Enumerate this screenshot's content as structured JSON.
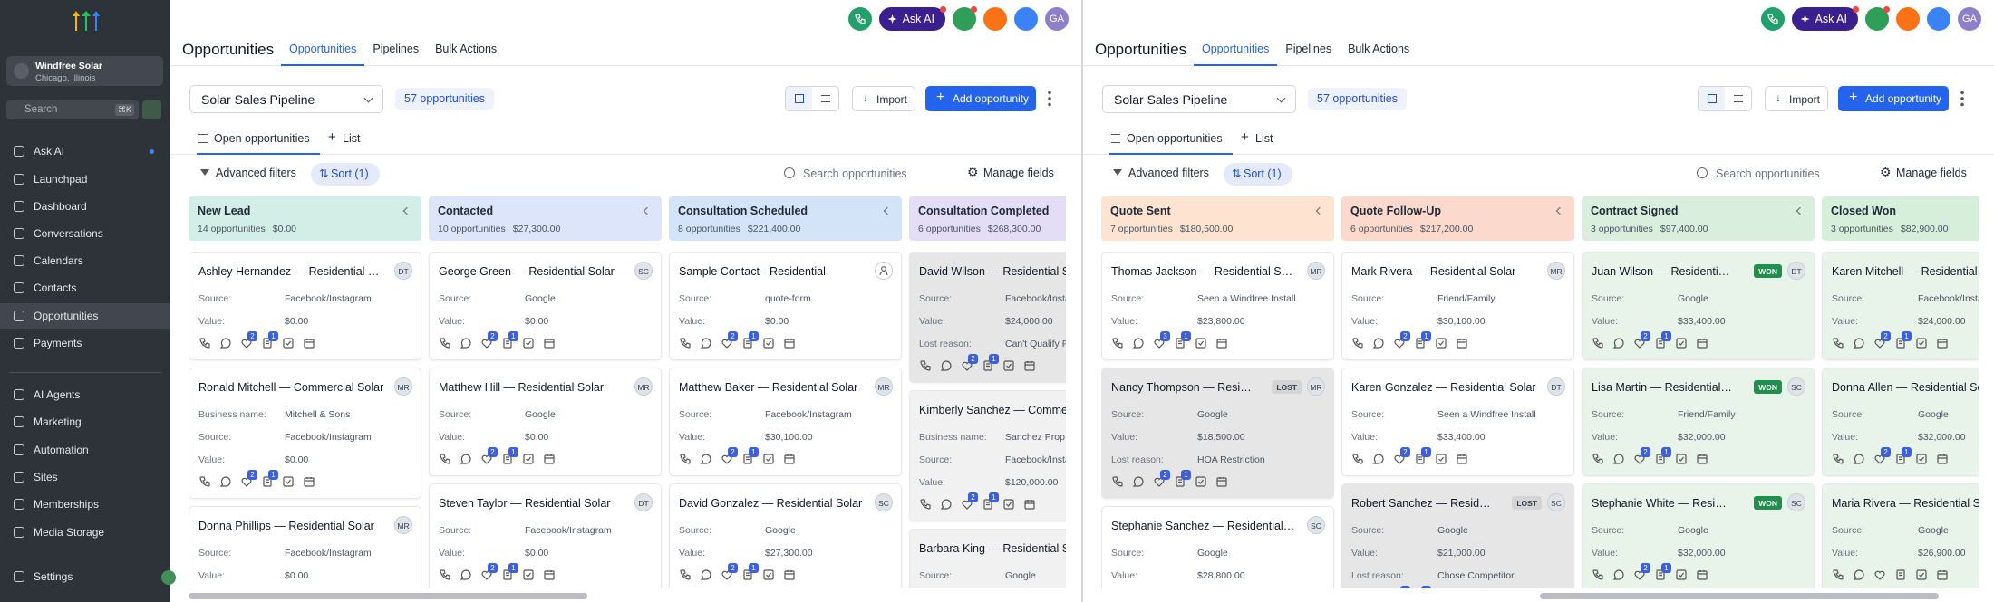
{
  "sidebar": {
    "account": {
      "name": "Windfree Solar",
      "location": "Chicago, Illinois"
    },
    "search": "Search",
    "shortcut": "⌘K",
    "nav": [
      "Ask AI",
      "Launchpad",
      "Dashboard",
      "Conversations",
      "Calendars",
      "Contacts",
      "Opportunities",
      "Payments"
    ],
    "nav2": [
      "AI Agents",
      "Marketing",
      "Automation",
      "Sites",
      "Memberships",
      "Media Storage"
    ],
    "settings": "Settings"
  },
  "panes": [
    {
      "header": {
        "ask_ai": "Ask AI",
        "avatar": "GA",
        "title": "Opportunities",
        "tabs": [
          "Opportunities",
          "Pipelines",
          "Bulk Actions"
        ]
      },
      "toolbar": {
        "pipeline": "Solar Sales Pipeline",
        "count": "57 opportunities",
        "import": "Import",
        "add": "Add opportunity"
      },
      "views": [
        "Open opportunities",
        "List"
      ],
      "filters": {
        "advanced": "Advanced filters",
        "sort": "Sort (1)",
        "search": "Search opportunities",
        "manage": "Manage fields"
      },
      "columns": [
        {
          "name": "New Lead",
          "count": "14 opportunities",
          "total": "$0.00",
          "color": "#d3eee6",
          "cards": [
            {
              "title": "Ashley Hernandez — Residential Solar",
              "initials": "DT",
              "color": "#ffffff",
              "fields": [
                [
                  "Source:",
                  "Facebook/Instagram"
                ],
                [
                  "Value:",
                  "$0.00"
                ]
              ],
              "icon_counts": [
                2,
                1
              ]
            },
            {
              "title": "Ronald Mitchell — Commercial Solar",
              "initials": "MR",
              "color": "#ffffff",
              "fields": [
                [
                  "Business name:",
                  "Mitchell & Sons"
                ],
                [
                  "Source:",
                  "Facebook/Instagram"
                ],
                [
                  "Value:",
                  "$0.00"
                ]
              ],
              "icon_counts": [
                2,
                1
              ]
            },
            {
              "title": "Donna Phillips — Residential Solar",
              "initials": "MR",
              "color": "#ffffff",
              "fields": [
                [
                  "Source:",
                  "Facebook/Instagram"
                ],
                [
                  "Value:",
                  "$0.00"
                ]
              ],
              "icon_counts": []
            }
          ]
        },
        {
          "name": "Contacted",
          "count": "10 opportunities",
          "total": "$27,300.00",
          "color": "#dde5fb",
          "cards": [
            {
              "title": "George Green — Residential Solar",
              "initials": "SC",
              "color": "#ffffff",
              "fields": [
                [
                  "Source:",
                  "Google"
                ],
                [
                  "Value:",
                  "$0.00"
                ]
              ],
              "icon_counts": [
                2,
                1
              ]
            },
            {
              "title": "Matthew Hill — Residential Solar",
              "initials": "MR",
              "color": "#ffffff",
              "fields": [
                [
                  "Source:",
                  "Google"
                ],
                [
                  "Value:",
                  "$0.00"
                ]
              ],
              "icon_counts": [
                2,
                1
              ]
            },
            {
              "title": "Steven Taylor — Residential Solar",
              "initials": "DT",
              "color": "#ffffff",
              "fields": [
                [
                  "Source:",
                  "Facebook/Instagram"
                ],
                [
                  "Value:",
                  "$0.00"
                ]
              ],
              "icon_counts": [
                2,
                1
              ]
            }
          ]
        },
        {
          "name": "Consultation Scheduled",
          "count": "8 opportunities",
          "total": "$221,400.00",
          "color": "#d3e3f8",
          "cards": [
            {
              "title": "Sample Contact - Residential",
              "color": "#ffffff",
              "fields": [
                [
                  "Source:",
                  "quote-form"
                ],
                [
                  "Value:",
                  "$0.00"
                ]
              ],
              "icon_counts": [
                2,
                1
              ]
            },
            {
              "title": "Matthew Baker — Residential Solar",
              "initials": "MR",
              "color": "#ffffff",
              "fields": [
                [
                  "Source:",
                  "Facebook/Instagram"
                ],
                [
                  "Value:",
                  "$30,100.00"
                ]
              ],
              "icon_counts": [
                2,
                1
              ]
            },
            {
              "title": "David Gonzalez — Residential Solar",
              "initials": "SC",
              "color": "#ffffff",
              "fields": [
                [
                  "Source:",
                  "Google"
                ],
                [
                  "Value:",
                  "$27,300.00"
                ]
              ],
              "icon_counts": [
                2,
                1
              ]
            }
          ]
        },
        {
          "name": "Consultation Completed",
          "count": "6 opportunities",
          "total": "$268,300.00",
          "color": "#e3ddf6",
          "cards": [
            {
              "title": "David Wilson — Residential Solar",
              "color": "#e6e6e6",
              "fields": [
                [
                  "Source:",
                  "Facebook/Instagram"
                ],
                [
                  "Value:",
                  "$24,000.00"
                ],
                [
                  "Lost reason:",
                  "Can't Qualify F"
                ]
              ],
              "icon_counts": [
                2,
                1
              ]
            },
            {
              "title": "Kimberly Sanchez — Commercial Solar",
              "color": "#f1f1f1",
              "fields": [
                [
                  "Business name:",
                  "Sanchez Prop"
                ],
                [
                  "Source:",
                  "Facebook/Instagram"
                ],
                [
                  "Value:",
                  "$120,000.00"
                ]
              ],
              "icon_counts": [
                2,
                1
              ]
            },
            {
              "title": "Barbara King — Residential Solar",
              "color": "#f1f1f1",
              "fields": [
                [
                  "Source:",
                  "Google"
                ]
              ],
              "icon_counts": []
            }
          ]
        }
      ]
    },
    {
      "header": {
        "ask_ai": "Ask AI",
        "avatar": "GA",
        "title": "Opportunities",
        "tabs": [
          "Opportunities",
          "Pipelines",
          "Bulk Actions"
        ]
      },
      "toolbar": {
        "pipeline": "Solar Sales Pipeline",
        "count": "57 opportunities",
        "import": "Import",
        "add": "Add opportunity"
      },
      "views": [
        "Open opportunities",
        "List"
      ],
      "filters": {
        "advanced": "Advanced filters",
        "sort": "Sort (1)",
        "search": "Search opportunities",
        "manage": "Manage fields"
      },
      "columns": [
        {
          "name": "Quote Sent",
          "count": "7 opportunities",
          "total": "$180,500.00",
          "color": "#fde3d0",
          "cards": [
            {
              "title": "Thomas Jackson — Residential Solar",
              "initials": "MR",
              "color": "#ffffff",
              "fields": [
                [
                  "Source:",
                  "Seen a Windfree Install"
                ],
                [
                  "Value:",
                  "$23,800.00"
                ]
              ],
              "icon_counts": [
                3,
                1
              ]
            },
            {
              "title": "Nancy Thompson — Residential Solar",
              "badge": "LOST",
              "badge_color": "#d4d4d4",
              "initials": "MR",
              "color": "#e6e6e6",
              "fields": [
                [
                  "Source:",
                  "Google"
                ],
                [
                  "Value:",
                  "$18,500.00"
                ],
                [
                  "Lost reason:",
                  "HOA Restriction"
                ]
              ],
              "icon_counts": [
                2,
                1
              ]
            },
            {
              "title": "Stephanie Sanchez — Residential Solar",
              "initials": "SC",
              "color": "#ffffff",
              "fields": [
                [
                  "Source:",
                  "Google"
                ],
                [
                  "Value:",
                  "$28,800.00"
                ]
              ],
              "icon_counts": []
            }
          ]
        },
        {
          "name": "Quote Follow-Up",
          "count": "6 opportunities",
          "total": "$217,200.00",
          "color": "#fbdacd",
          "cards": [
            {
              "title": "Mark Rivera — Residential Solar",
              "initials": "MR",
              "color": "#ffffff",
              "fields": [
                [
                  "Source:",
                  "Friend/Family"
                ],
                [
                  "Value:",
                  "$30,100.00"
                ]
              ],
              "icon_counts": [
                2,
                1
              ]
            },
            {
              "title": "Karen Gonzalez — Residential Solar",
              "initials": "DT",
              "color": "#ffffff",
              "fields": [
                [
                  "Source:",
                  "Seen a Windfree Install"
                ],
                [
                  "Value:",
                  "$33,400.00"
                ]
              ],
              "icon_counts": [
                2,
                1
              ]
            },
            {
              "title": "Robert Sanchez — Residential Solar",
              "badge": "LOST",
              "badge_color": "#d4d4d4",
              "initials": "SC",
              "color": "#e6e6e6",
              "fields": [
                [
                  "Source:",
                  "Google"
                ],
                [
                  "Value:",
                  "$21,000.00"
                ],
                [
                  "Lost reason:",
                  "Chose Competitor"
                ]
              ],
              "icon_counts": [
                2,
                1
              ]
            }
          ]
        },
        {
          "name": "Contract Signed",
          "count": "3 opportunities",
          "total": "$97,400.00",
          "color": "#d9eedd",
          "cards": [
            {
              "title": "Juan Wilson — Residential Solar",
              "badge": "WON",
              "badge_color": "#1f8f4e",
              "initials": "DT",
              "color": "#e8f4ea",
              "fields": [
                [
                  "Source:",
                  "Google"
                ],
                [
                  "Value:",
                  "$33,400.00"
                ]
              ],
              "icon_counts": [
                2,
                1
              ]
            },
            {
              "title": "Lisa Martin — Residential Solar",
              "badge": "WON",
              "badge_color": "#1f8f4e",
              "initials": "SC",
              "color": "#e8f4ea",
              "fields": [
                [
                  "Source:",
                  "Friend/Family"
                ],
                [
                  "Value:",
                  "$32,000.00"
                ]
              ],
              "icon_counts": [
                2,
                1
              ]
            },
            {
              "title": "Stephanie White — Residential Solar",
              "badge": "WON",
              "badge_color": "#1f8f4e",
              "initials": "SC",
              "color": "#e8f4ea",
              "fields": [
                [
                  "Source:",
                  "Google"
                ],
                [
                  "Value:",
                  "$32,000.00"
                ]
              ],
              "icon_counts": [
                2,
                1
              ]
            }
          ]
        },
        {
          "name": "Closed Won",
          "count": "3 opportunities",
          "total": "$82,900.00",
          "color": "#d5efda",
          "cards": [
            {
              "title": "Karen Mitchell — Residential Solar",
              "color": "#e8f4ea",
              "fields": [
                [
                  "Source:",
                  "Facebook/Instagram"
                ],
                [
                  "Value:",
                  "$24,000.00"
                ]
              ],
              "icon_counts": [
                2,
                1
              ]
            },
            {
              "title": "Donna Allen — Residential Solar",
              "color": "#e8f4ea",
              "fields": [
                [
                  "Source:",
                  "Google"
                ],
                [
                  "Value:",
                  "$32,000.00"
                ]
              ],
              "icon_counts": [
                2,
                1
              ]
            },
            {
              "title": "Maria Rivera — Residential Solar",
              "color": "#e8f4ea",
              "fields": [
                [
                  "Source:",
                  "Google"
                ],
                [
                  "Value:",
                  "$26,900.00"
                ]
              ],
              "icon_counts": []
            }
          ]
        }
      ]
    }
  ]
}
